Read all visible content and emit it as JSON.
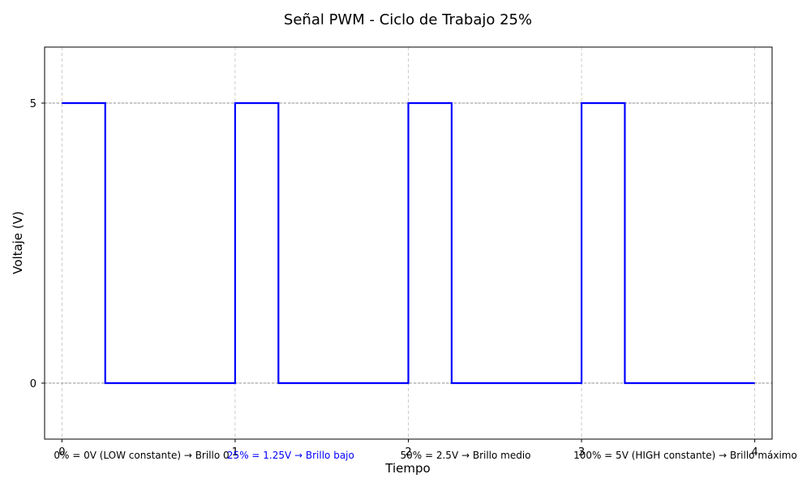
{
  "chart_data": {
    "type": "line",
    "title": "Señal PWM - Ciclo de Trabajo 25%",
    "xlabel": "Tiempo",
    "ylabel": "Voltaje (V)",
    "xlim": [
      -0.1,
      4.1
    ],
    "ylim": [
      -1,
      6
    ],
    "x_ticks": [
      0,
      1,
      2,
      3,
      4
    ],
    "y_ticks": [
      0,
      5
    ],
    "grid": true,
    "grid_style": "dashed",
    "reference_lines_y": [
      0,
      5
    ],
    "line_color": "#0000ff",
    "series": [
      {
        "step": "post",
        "x": [
          0,
          0.25,
          1,
          1.25,
          2,
          2.25,
          3,
          3.25,
          4
        ],
        "y": [
          5,
          0,
          5,
          0,
          5,
          0,
          5,
          0,
          0
        ]
      }
    ],
    "annotations": [
      {
        "text": "0% = 0V (LOW constante)   → Brillo 0",
        "x": 0,
        "color": "#000000"
      },
      {
        "text": "25% = 1.25V → Brillo bajo",
        "x": 1,
        "color": "#0000ff"
      },
      {
        "text": "50% = 2.5V → Brillo medio",
        "x": 2,
        "color": "#000000"
      },
      {
        "text": "100% = 5V (HIGH constante) → Brillo máximo",
        "x": 3,
        "color": "#000000"
      }
    ]
  }
}
